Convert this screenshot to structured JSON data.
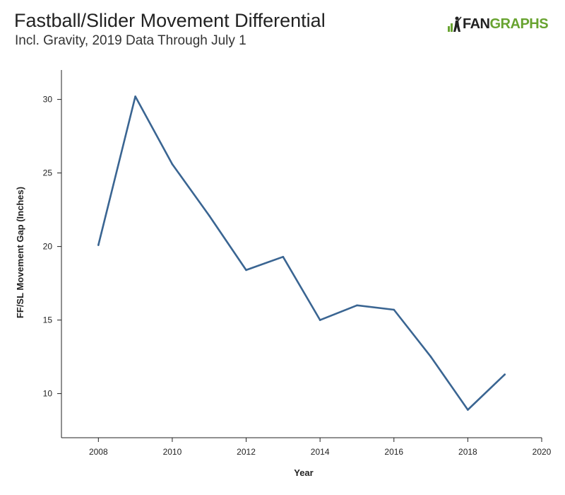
{
  "header": {
    "title": "Fastball/Slider Movement Differential",
    "subtitle": "Incl. Gravity, 2019 Data Through July 1"
  },
  "logo": {
    "text_dark": "FAN",
    "text_green": "GRAPHS",
    "icon": "batter-icon",
    "colors": {
      "dark": "#222222",
      "green": "#68a330"
    }
  },
  "chart_data": {
    "type": "line",
    "title": "Fastball/Slider Movement Differential",
    "subtitle": "Incl. Gravity, 2019 Data Through July 1",
    "xlabel": "Year",
    "ylabel": "FF/SL Movement Gap (Inches)",
    "xlim": [
      2007,
      2020
    ],
    "ylim": [
      7,
      32
    ],
    "xticks": [
      2008,
      2010,
      2012,
      2014,
      2016,
      2018,
      2020
    ],
    "yticks": [
      10,
      15,
      20,
      25,
      30
    ],
    "grid": false,
    "line_color": "#3a6592",
    "series": [
      {
        "x": [
          2008,
          2009,
          2010,
          2011,
          2012,
          2013,
          2014,
          2015,
          2016,
          2017,
          2018,
          2019
        ],
        "y": [
          20.1,
          30.2,
          25.6,
          22.1,
          18.4,
          19.3,
          15.0,
          16.0,
          15.7,
          12.5,
          8.9,
          11.3
        ]
      }
    ]
  }
}
